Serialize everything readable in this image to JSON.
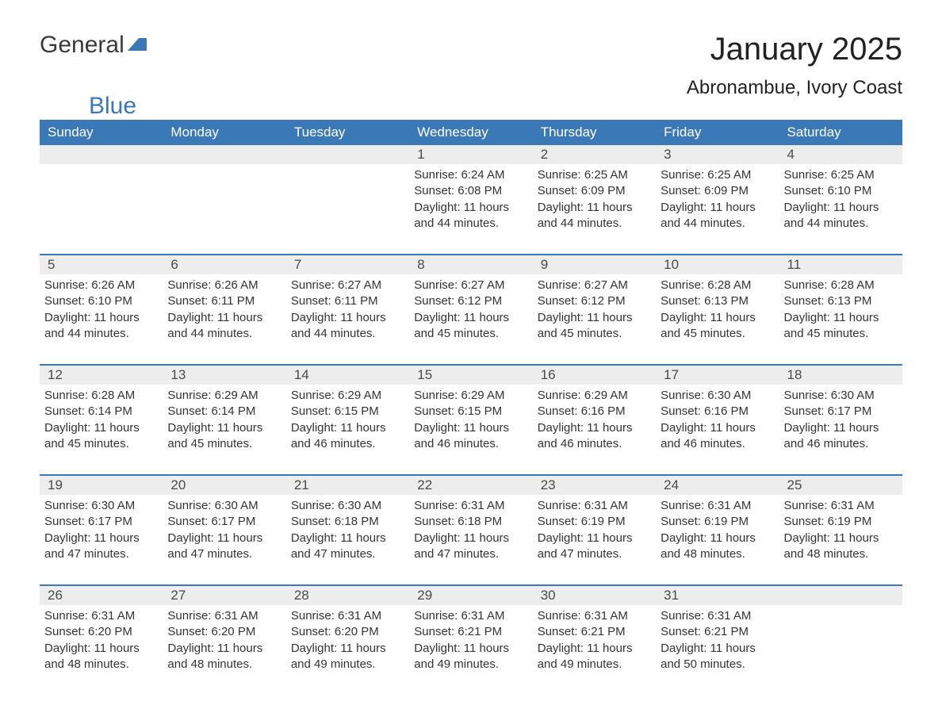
{
  "logo": {
    "text1": "General",
    "text2": "Blue"
  },
  "title": "January 2025",
  "location": "Abronambue, Ivory Coast",
  "colors": {
    "header_bg": "#3a78b8",
    "header_fg": "#ffffff",
    "daynum_bg": "#ededed",
    "text": "#333333",
    "row_border": "#3a78b8"
  },
  "day_headers": [
    "Sunday",
    "Monday",
    "Tuesday",
    "Wednesday",
    "Thursday",
    "Friday",
    "Saturday"
  ],
  "weeks": [
    [
      {
        "day": "",
        "sunrise": "",
        "sunset": "",
        "daylight": ""
      },
      {
        "day": "",
        "sunrise": "",
        "sunset": "",
        "daylight": ""
      },
      {
        "day": "",
        "sunrise": "",
        "sunset": "",
        "daylight": ""
      },
      {
        "day": "1",
        "sunrise": "Sunrise: 6:24 AM",
        "sunset": "Sunset: 6:08 PM",
        "daylight": "Daylight: 11 hours and 44 minutes."
      },
      {
        "day": "2",
        "sunrise": "Sunrise: 6:25 AM",
        "sunset": "Sunset: 6:09 PM",
        "daylight": "Daylight: 11 hours and 44 minutes."
      },
      {
        "day": "3",
        "sunrise": "Sunrise: 6:25 AM",
        "sunset": "Sunset: 6:09 PM",
        "daylight": "Daylight: 11 hours and 44 minutes."
      },
      {
        "day": "4",
        "sunrise": "Sunrise: 6:25 AM",
        "sunset": "Sunset: 6:10 PM",
        "daylight": "Daylight: 11 hours and 44 minutes."
      }
    ],
    [
      {
        "day": "5",
        "sunrise": "Sunrise: 6:26 AM",
        "sunset": "Sunset: 6:10 PM",
        "daylight": "Daylight: 11 hours and 44 minutes."
      },
      {
        "day": "6",
        "sunrise": "Sunrise: 6:26 AM",
        "sunset": "Sunset: 6:11 PM",
        "daylight": "Daylight: 11 hours and 44 minutes."
      },
      {
        "day": "7",
        "sunrise": "Sunrise: 6:27 AM",
        "sunset": "Sunset: 6:11 PM",
        "daylight": "Daylight: 11 hours and 44 minutes."
      },
      {
        "day": "8",
        "sunrise": "Sunrise: 6:27 AM",
        "sunset": "Sunset: 6:12 PM",
        "daylight": "Daylight: 11 hours and 45 minutes."
      },
      {
        "day": "9",
        "sunrise": "Sunrise: 6:27 AM",
        "sunset": "Sunset: 6:12 PM",
        "daylight": "Daylight: 11 hours and 45 minutes."
      },
      {
        "day": "10",
        "sunrise": "Sunrise: 6:28 AM",
        "sunset": "Sunset: 6:13 PM",
        "daylight": "Daylight: 11 hours and 45 minutes."
      },
      {
        "day": "11",
        "sunrise": "Sunrise: 6:28 AM",
        "sunset": "Sunset: 6:13 PM",
        "daylight": "Daylight: 11 hours and 45 minutes."
      }
    ],
    [
      {
        "day": "12",
        "sunrise": "Sunrise: 6:28 AM",
        "sunset": "Sunset: 6:14 PM",
        "daylight": "Daylight: 11 hours and 45 minutes."
      },
      {
        "day": "13",
        "sunrise": "Sunrise: 6:29 AM",
        "sunset": "Sunset: 6:14 PM",
        "daylight": "Daylight: 11 hours and 45 minutes."
      },
      {
        "day": "14",
        "sunrise": "Sunrise: 6:29 AM",
        "sunset": "Sunset: 6:15 PM",
        "daylight": "Daylight: 11 hours and 46 minutes."
      },
      {
        "day": "15",
        "sunrise": "Sunrise: 6:29 AM",
        "sunset": "Sunset: 6:15 PM",
        "daylight": "Daylight: 11 hours and 46 minutes."
      },
      {
        "day": "16",
        "sunrise": "Sunrise: 6:29 AM",
        "sunset": "Sunset: 6:16 PM",
        "daylight": "Daylight: 11 hours and 46 minutes."
      },
      {
        "day": "17",
        "sunrise": "Sunrise: 6:30 AM",
        "sunset": "Sunset: 6:16 PM",
        "daylight": "Daylight: 11 hours and 46 minutes."
      },
      {
        "day": "18",
        "sunrise": "Sunrise: 6:30 AM",
        "sunset": "Sunset: 6:17 PM",
        "daylight": "Daylight: 11 hours and 46 minutes."
      }
    ],
    [
      {
        "day": "19",
        "sunrise": "Sunrise: 6:30 AM",
        "sunset": "Sunset: 6:17 PM",
        "daylight": "Daylight: 11 hours and 47 minutes."
      },
      {
        "day": "20",
        "sunrise": "Sunrise: 6:30 AM",
        "sunset": "Sunset: 6:17 PM",
        "daylight": "Daylight: 11 hours and 47 minutes."
      },
      {
        "day": "21",
        "sunrise": "Sunrise: 6:30 AM",
        "sunset": "Sunset: 6:18 PM",
        "daylight": "Daylight: 11 hours and 47 minutes."
      },
      {
        "day": "22",
        "sunrise": "Sunrise: 6:31 AM",
        "sunset": "Sunset: 6:18 PM",
        "daylight": "Daylight: 11 hours and 47 minutes."
      },
      {
        "day": "23",
        "sunrise": "Sunrise: 6:31 AM",
        "sunset": "Sunset: 6:19 PM",
        "daylight": "Daylight: 11 hours and 47 minutes."
      },
      {
        "day": "24",
        "sunrise": "Sunrise: 6:31 AM",
        "sunset": "Sunset: 6:19 PM",
        "daylight": "Daylight: 11 hours and 48 minutes."
      },
      {
        "day": "25",
        "sunrise": "Sunrise: 6:31 AM",
        "sunset": "Sunset: 6:19 PM",
        "daylight": "Daylight: 11 hours and 48 minutes."
      }
    ],
    [
      {
        "day": "26",
        "sunrise": "Sunrise: 6:31 AM",
        "sunset": "Sunset: 6:20 PM",
        "daylight": "Daylight: 11 hours and 48 minutes."
      },
      {
        "day": "27",
        "sunrise": "Sunrise: 6:31 AM",
        "sunset": "Sunset: 6:20 PM",
        "daylight": "Daylight: 11 hours and 48 minutes."
      },
      {
        "day": "28",
        "sunrise": "Sunrise: 6:31 AM",
        "sunset": "Sunset: 6:20 PM",
        "daylight": "Daylight: 11 hours and 49 minutes."
      },
      {
        "day": "29",
        "sunrise": "Sunrise: 6:31 AM",
        "sunset": "Sunset: 6:21 PM",
        "daylight": "Daylight: 11 hours and 49 minutes."
      },
      {
        "day": "30",
        "sunrise": "Sunrise: 6:31 AM",
        "sunset": "Sunset: 6:21 PM",
        "daylight": "Daylight: 11 hours and 49 minutes."
      },
      {
        "day": "31",
        "sunrise": "Sunrise: 6:31 AM",
        "sunset": "Sunset: 6:21 PM",
        "daylight": "Daylight: 11 hours and 50 minutes."
      },
      {
        "day": "",
        "sunrise": "",
        "sunset": "",
        "daylight": ""
      }
    ]
  ]
}
